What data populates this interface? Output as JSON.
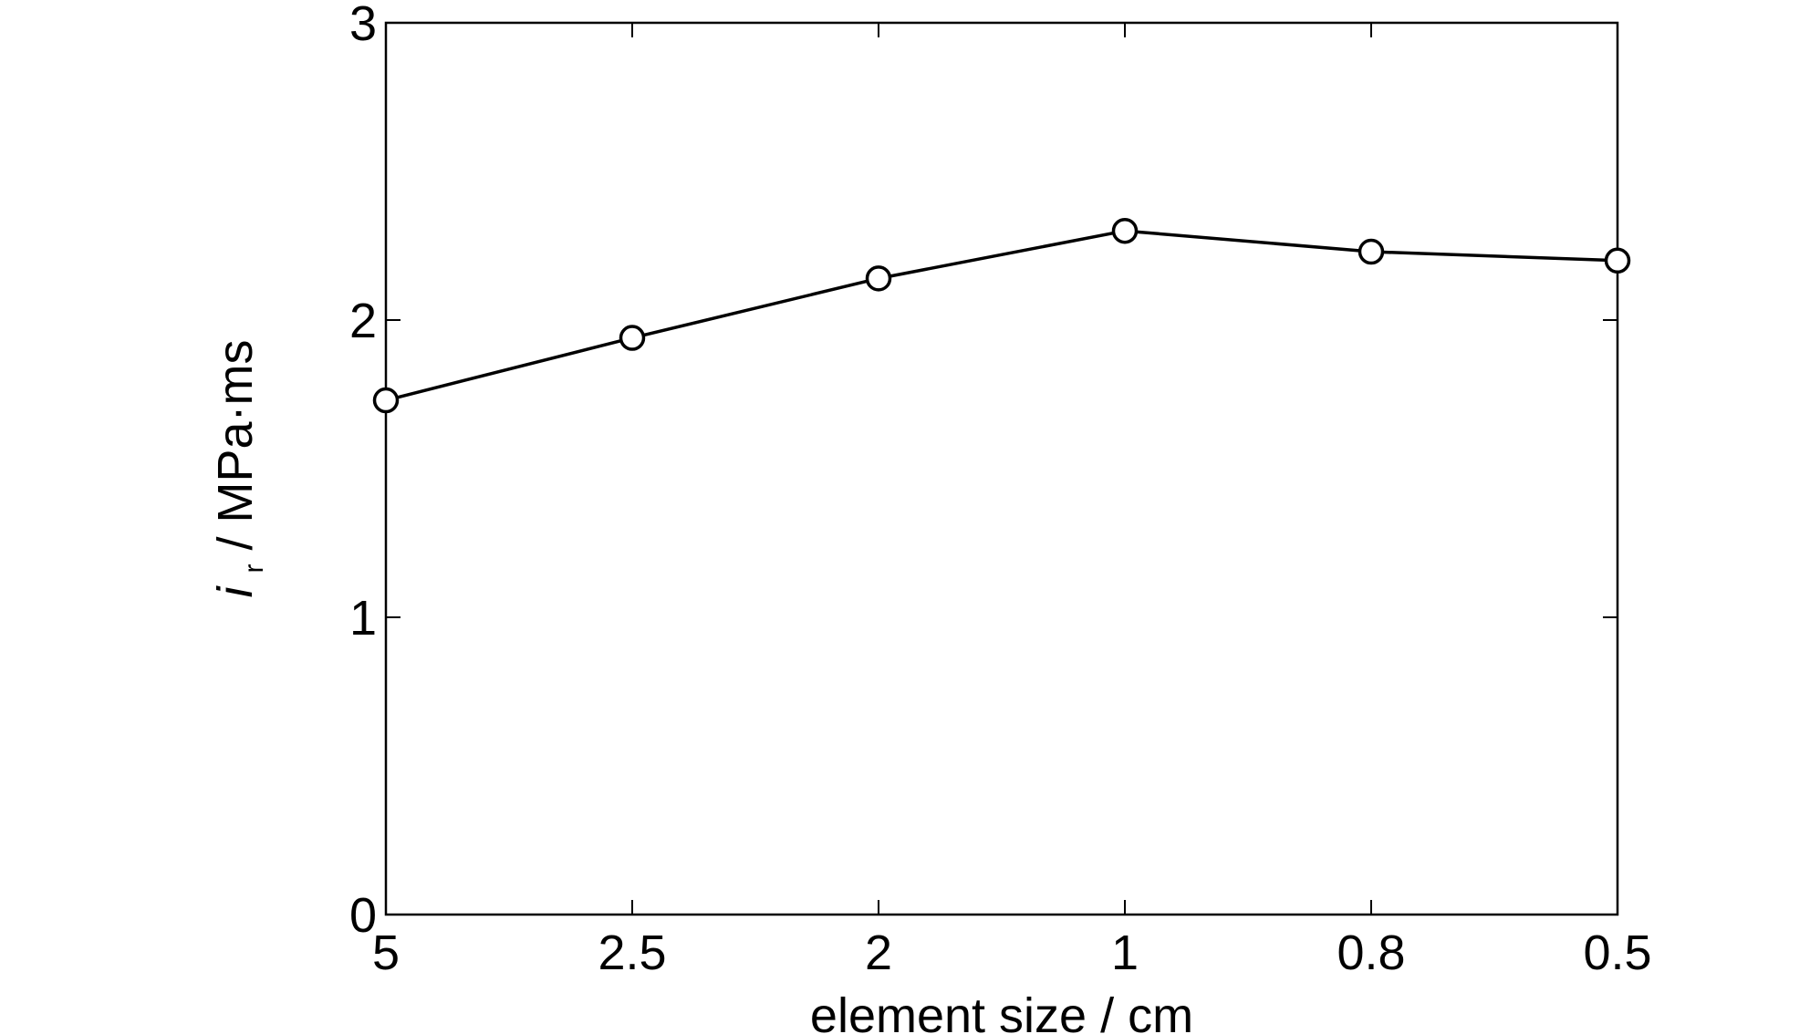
{
  "chart_data": {
    "type": "line",
    "categories": [
      "5",
      "2.5",
      "2",
      "1",
      "0.8",
      "0.5"
    ],
    "series": [
      {
        "values": [
          1.73,
          1.94,
          2.14,
          2.3,
          2.23,
          2.2
        ],
        "color": "#000000",
        "marker": "circle-open"
      }
    ],
    "xlabel": "element size / cm",
    "ylabel": {
      "symbol": "i",
      "subscript": "r",
      "rest": " / MPa·ms"
    },
    "ylim": [
      0,
      3
    ],
    "yticks": [
      "0",
      "1",
      "2",
      "3"
    ],
    "grid": false,
    "legend": false
  }
}
